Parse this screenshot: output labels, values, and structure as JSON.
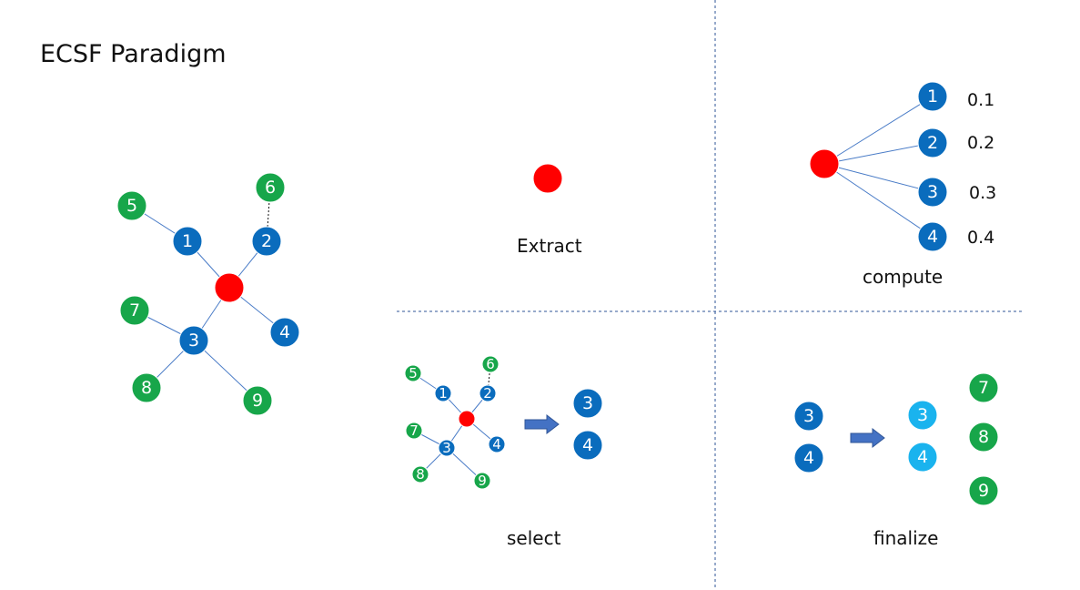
{
  "title": "ECSF Paradigm",
  "colors": {
    "anchor": "#ff0000",
    "neighbor": "#0a6cbd",
    "second_hop": "#17a64a",
    "selected": "#1ab3ee",
    "edge": "#4a7cc7",
    "divider": "#2f5597",
    "arrow": "#4472c4"
  },
  "graph": {
    "neighbors": [
      "1",
      "2",
      "3",
      "4"
    ],
    "second_hop": [
      "5",
      "6",
      "7",
      "8",
      "9"
    ]
  },
  "stages": {
    "extract": {
      "label": "Extract"
    },
    "compute": {
      "label": "compute",
      "nodes": [
        "1",
        "2",
        "3",
        "4"
      ],
      "scores": [
        "0.1",
        "0.2",
        "0.3",
        "0.4"
      ]
    },
    "select": {
      "label": "select",
      "chosen": [
        "3",
        "4"
      ]
    },
    "finalize": {
      "label": "finalize",
      "input": [
        "3",
        "4"
      ],
      "output": [
        "3",
        "4"
      ],
      "added": [
        "7",
        "8",
        "9"
      ]
    }
  }
}
